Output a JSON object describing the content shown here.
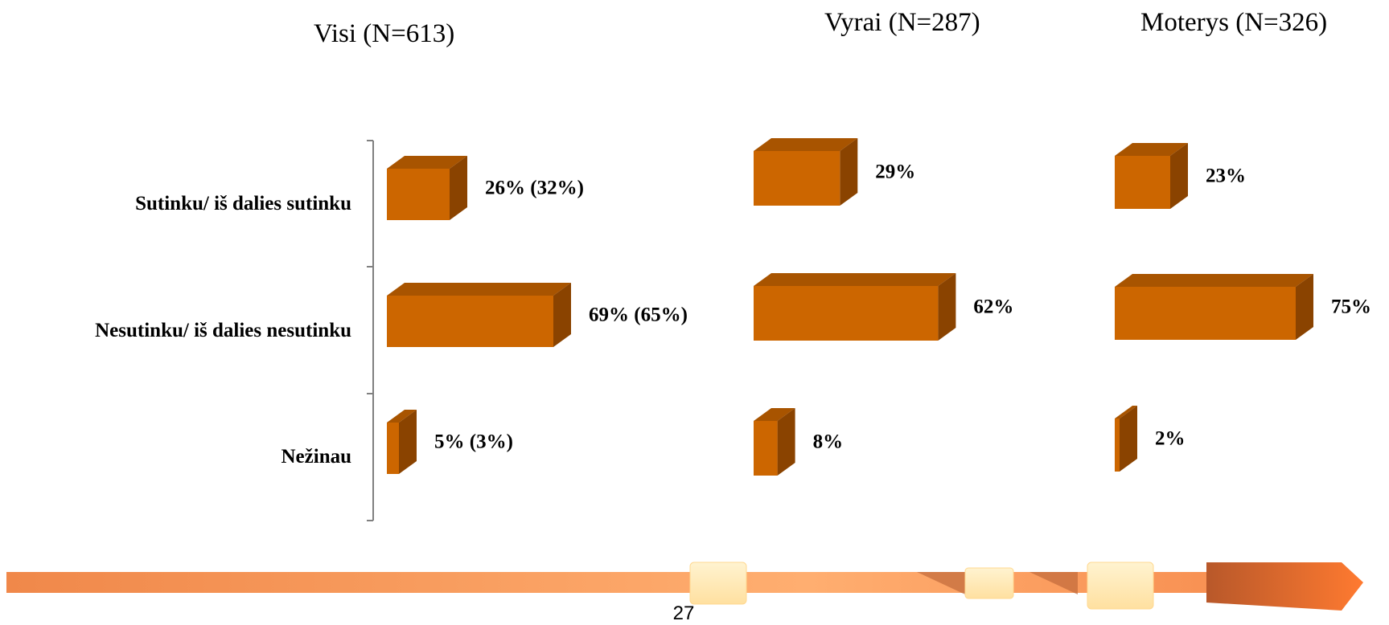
{
  "page_number": "27",
  "colors": {
    "bar_front": "#CC6600",
    "bar_top": "#A85400",
    "bar_side": "#8A4300",
    "axis": "#808080"
  },
  "chart_data": [
    {
      "type": "bar",
      "orientation": "horizontal",
      "title": "Visi (N=613)",
      "categories": [
        "Sutinku/ iš dalies sutinku",
        "Nesutinku/ iš dalies nesutinku",
        "Nežinau"
      ],
      "values": [
        26,
        69,
        5
      ],
      "data_labels": [
        "26% (32%)",
        "69% (65%)",
        "5% (3%)"
      ],
      "unit": "%"
    },
    {
      "type": "bar",
      "orientation": "horizontal",
      "title": "Vyrai (N=287)",
      "categories": [
        "Sutinku/ iš dalies sutinku",
        "Nesutinku/ iš dalies nesutinku",
        "Nežinau"
      ],
      "values": [
        29,
        62,
        8
      ],
      "data_labels": [
        "29%",
        "62%",
        "8%"
      ],
      "unit": "%"
    },
    {
      "type": "bar",
      "orientation": "horizontal",
      "title": "Moterys (N=326)",
      "categories": [
        "Sutinku/ iš dalies sutinku",
        "Nesutinku/ iš dalies nesutinku",
        "Nežinau"
      ],
      "values": [
        23,
        75,
        2
      ],
      "data_labels": [
        "23%",
        "75%",
        "2%"
      ],
      "unit": "%"
    }
  ]
}
